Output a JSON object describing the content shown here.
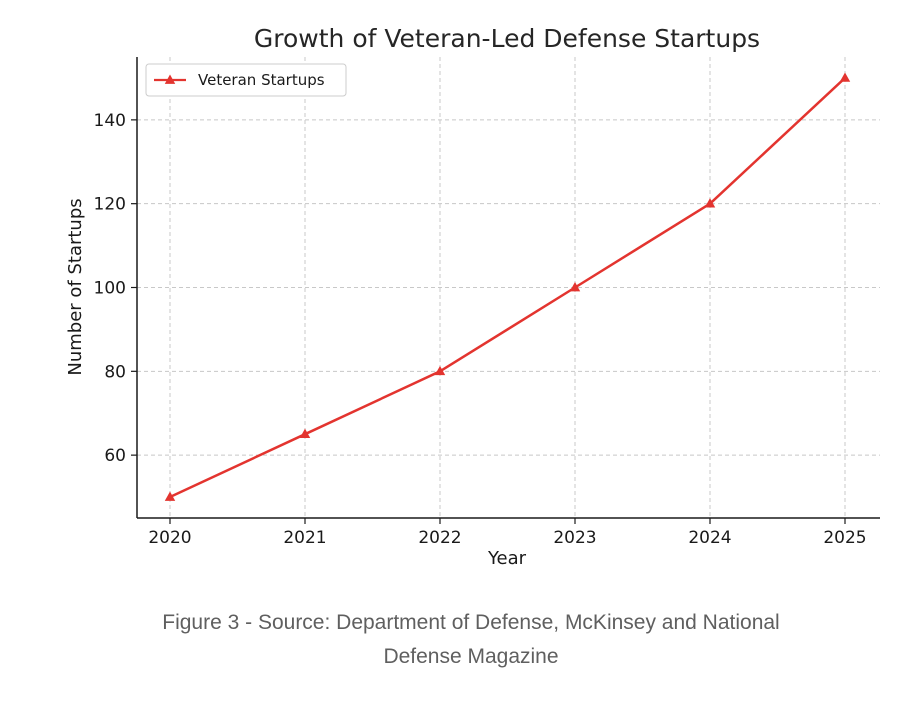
{
  "chart_data": {
    "type": "line",
    "title": "Growth of Veteran-Led Defense Startups",
    "xlabel": "Year",
    "ylabel": "Number of Startups",
    "categories": [
      "2020",
      "2021",
      "2022",
      "2023",
      "2024",
      "2025"
    ],
    "series": [
      {
        "name": "Veteran Startups",
        "values": [
          50,
          65,
          80,
          100,
          120,
          150
        ],
        "color": "#e3342f",
        "marker": "triangle"
      }
    ],
    "yticks": [
      60,
      80,
      100,
      120,
      140
    ],
    "ylim": [
      45,
      155
    ],
    "grid": true,
    "legend_position": "top-left"
  },
  "caption": {
    "line1": "Figure 3 - Source: Department of Defense, McKinsey and National",
    "line2": "Defense Magazine"
  }
}
